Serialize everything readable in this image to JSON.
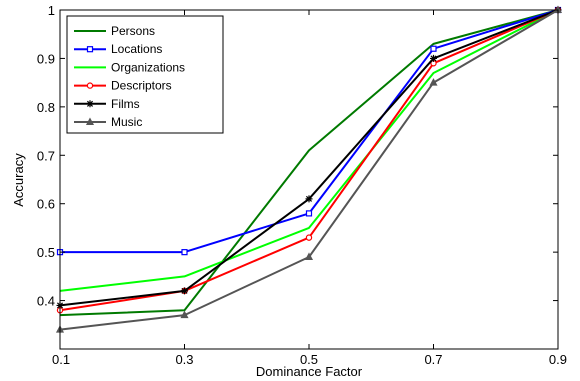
{
  "chart_data": {
    "type": "line",
    "title": "",
    "xlabel": "Dominance Factor",
    "ylabel": "Accuracy",
    "xlim": [
      0.1,
      0.9
    ],
    "ylim": [
      0.3,
      1.0
    ],
    "x": [
      0.1,
      0.3,
      0.5,
      0.7,
      0.9
    ],
    "x_ticks": [
      "0.1",
      "0.3",
      "0.5",
      "0.7",
      "0.9"
    ],
    "y_ticks": [
      "0.4",
      "0.5",
      "0.6",
      "0.7",
      "0.8",
      "0.9",
      "1"
    ],
    "y_tick_values": [
      0.4,
      0.5,
      0.6,
      0.7,
      0.8,
      0.9,
      1.0
    ],
    "grid": false,
    "legend_position": "top-left",
    "series": [
      {
        "name": "Persons",
        "color": "#007a00",
        "marker": "none",
        "values": [
          0.37,
          0.38,
          0.71,
          0.93,
          1.0
        ]
      },
      {
        "name": "Locations",
        "color": "#0000ff",
        "marker": "square",
        "values": [
          0.5,
          0.5,
          0.58,
          0.92,
          1.0
        ]
      },
      {
        "name": "Organizations",
        "color": "#00ff00",
        "marker": "none",
        "values": [
          0.42,
          0.45,
          0.55,
          0.87,
          1.0
        ]
      },
      {
        "name": "Descriptors",
        "color": "#ff0000",
        "marker": "circle",
        "values": [
          0.38,
          0.42,
          0.53,
          0.89,
          1.0
        ]
      },
      {
        "name": "Films",
        "color": "#000000",
        "marker": "star",
        "values": [
          0.39,
          0.42,
          0.61,
          0.9,
          1.0
        ]
      },
      {
        "name": "Music",
        "color": "#555555",
        "marker": "triangle",
        "values": [
          0.34,
          0.37,
          0.49,
          0.85,
          1.0
        ]
      }
    ]
  }
}
